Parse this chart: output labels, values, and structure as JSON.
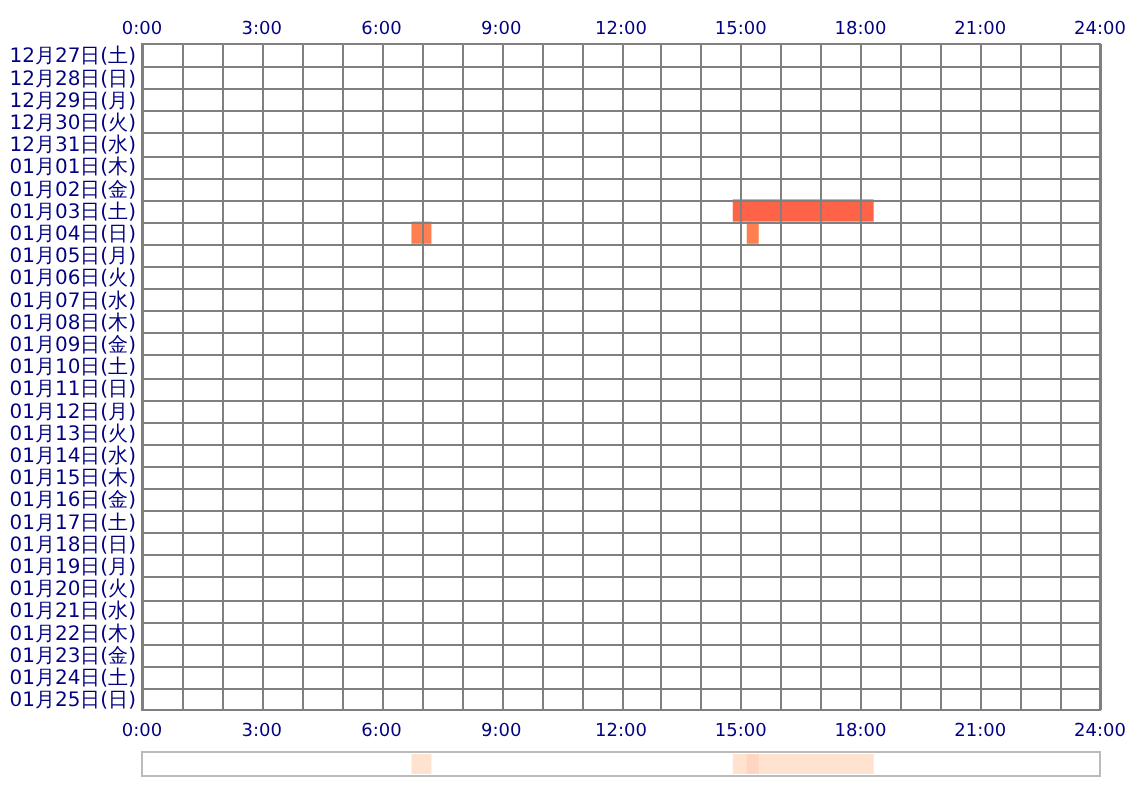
{
  "chart_data": [
    {
      "type": "bar",
      "orientation": "horizontal",
      "grid": true,
      "categories": [
        "12月27日(土)",
        "12月28日(日)",
        "12月29日(月)",
        "12月30日(火)",
        "12月31日(水)",
        "01月01日(木)",
        "01月02日(金)",
        "01月03日(土)",
        "01月04日(日)",
        "01月05日(月)",
        "01月06日(火)",
        "01月07日(水)",
        "01月08日(木)",
        "01月09日(金)",
        "01月10日(土)",
        "01月11日(日)",
        "01月12日(月)",
        "01月13日(火)",
        "01月14日(水)",
        "01月15日(木)",
        "01月16日(金)",
        "01月17日(土)",
        "01月18日(日)",
        "01月19日(月)",
        "01月20日(火)",
        "01月21日(水)",
        "01月22日(木)",
        "01月23日(金)",
        "01月24日(土)",
        "01月25日(日)"
      ],
      "series": [
        {
          "colors": [
            null,
            null,
            null,
            null,
            null,
            null,
            null,
            "#ff6347",
            "#ff7f50",
            null,
            null,
            null,
            null,
            null,
            null,
            null,
            null,
            null,
            null,
            null,
            null,
            null,
            null,
            null,
            null,
            null,
            null,
            null,
            null,
            null
          ],
          "values": [
            null,
            null,
            null,
            null,
            null,
            null,
            null,
            3.53,
            0.5,
            null,
            null,
            null,
            null,
            null,
            null,
            null,
            null,
            null,
            null,
            null,
            null,
            null,
            null,
            null,
            null,
            null,
            null,
            null,
            null,
            null
          ],
          "base": [
            null,
            null,
            null,
            null,
            null,
            null,
            null,
            14.8,
            6.75,
            null,
            null,
            null,
            null,
            null,
            null,
            null,
            null,
            null,
            null,
            null,
            null,
            null,
            null,
            null,
            null,
            null,
            null,
            null,
            null,
            null
          ]
        },
        {
          "colors": [
            null,
            null,
            null,
            null,
            null,
            null,
            null,
            null,
            "#ff7f50",
            null,
            null,
            null,
            null,
            null,
            null,
            null,
            null,
            null,
            null,
            null,
            null,
            null,
            null,
            null,
            null,
            null,
            null,
            null,
            null,
            null
          ],
          "values": [
            null,
            null,
            null,
            null,
            null,
            null,
            null,
            null,
            0.3,
            null,
            null,
            null,
            null,
            null,
            null,
            null,
            null,
            null,
            null,
            null,
            null,
            null,
            null,
            null,
            null,
            null,
            null,
            null,
            null,
            null
          ],
          "base": [
            null,
            null,
            null,
            null,
            null,
            null,
            null,
            null,
            15.15,
            null,
            null,
            null,
            null,
            null,
            null,
            null,
            null,
            null,
            null,
            null,
            null,
            null,
            null,
            null,
            null,
            null,
            null,
            null,
            null,
            null
          ]
        }
      ],
      "xlim": [
        0,
        24
      ],
      "xticks": [
        {
          "value": 0,
          "label": "0:00"
        },
        {
          "value": 1,
          "label": null
        },
        {
          "value": 2,
          "label": null
        },
        {
          "value": 3,
          "label": "3:00"
        },
        {
          "value": 4,
          "label": null
        },
        {
          "value": 5,
          "label": null
        },
        {
          "value": 6,
          "label": "6:00"
        },
        {
          "value": 7,
          "label": null
        },
        {
          "value": 8,
          "label": null
        },
        {
          "value": 9,
          "label": "9:00"
        },
        {
          "value": 10,
          "label": null
        },
        {
          "value": 11,
          "label": null
        },
        {
          "value": 12,
          "label": "12:00"
        },
        {
          "value": 13,
          "label": null
        },
        {
          "value": 14,
          "label": null
        },
        {
          "value": 15,
          "label": "15:00"
        },
        {
          "value": 16,
          "label": null
        },
        {
          "value": 17,
          "label": null
        },
        {
          "value": 18,
          "label": "18:00"
        },
        {
          "value": 19,
          "label": null
        },
        {
          "value": 20,
          "label": null
        },
        {
          "value": 21,
          "label": "21:00"
        },
        {
          "value": 22,
          "label": null
        },
        {
          "value": 23,
          "label": null
        },
        {
          "value": 24,
          "label": "24:00"
        }
      ],
      "x2lim": [
        0,
        24
      ],
      "x2ticks": [
        {
          "value": 0,
          "label": "0:00"
        },
        {
          "value": 3,
          "label": "3:00"
        },
        {
          "value": 6,
          "label": "6:00"
        },
        {
          "value": 9,
          "label": "9:00"
        },
        {
          "value": 12,
          "label": "12:00"
        },
        {
          "value": 15,
          "label": "15:00"
        },
        {
          "value": 18,
          "label": "18:00"
        },
        {
          "value": 21,
          "label": "21:00"
        },
        {
          "value": 24,
          "label": "24:00"
        }
      ]
    },
    {
      "type": "bar",
      "orientation": "horizontal",
      "categories": [
        null
      ],
      "series": [
        {
          "color": "#ffe2cf",
          "values": [
            0.5
          ],
          "base": [
            6.75
          ]
        },
        {
          "color": "#ffe2cf",
          "values": [
            3.53
          ],
          "base": [
            14.8
          ]
        },
        {
          "color": "#ffd4c0",
          "values": [
            0.3
          ],
          "base": [
            15.15
          ]
        }
      ],
      "xlim": [
        0,
        24
      ]
    }
  ]
}
